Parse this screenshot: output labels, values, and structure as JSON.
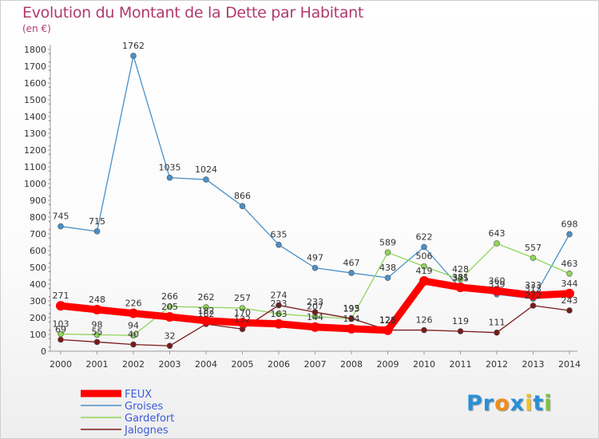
{
  "chart_data": {
    "type": "line",
    "title": "Evolution du Montant de la Dette par Habitant",
    "subtitle": "(en €)",
    "xlabel": "",
    "ylabel": "",
    "x": [
      "2000",
      "2001",
      "2002",
      "2003",
      "2004",
      "2005",
      "2006",
      "2007",
      "2008",
      "2009",
      "2010",
      "2011",
      "2012",
      "2013",
      "2014"
    ],
    "ylim": [
      0,
      1800
    ],
    "yticks": [
      0,
      100,
      200,
      300,
      400,
      500,
      600,
      700,
      800,
      900,
      1000,
      1100,
      1200,
      1300,
      1400,
      1500,
      1600,
      1700,
      1800
    ],
    "grid": false,
    "legend_position": "bottom-left",
    "series": [
      {
        "name": "FEUX",
        "color": "#ff0000",
        "values": [
          271,
          248,
          226,
          205,
          182,
          170,
          163,
          144,
          134,
          125,
          419,
          381,
          360,
          333,
          344
        ]
      },
      {
        "name": "Groises",
        "color": "#4a90c8",
        "values": [
          745,
          715,
          1762,
          1035,
          1024,
          866,
          635,
          497,
          467,
          438,
          622,
          375,
          339,
          313,
          698
        ]
      },
      {
        "name": "Gardefort",
        "color": "#8fd65a",
        "values": [
          103,
          98,
          94,
          266,
          262,
          257,
          223,
          207,
          193,
          589,
          506,
          428,
          643,
          557,
          463
        ]
      },
      {
        "name": "Jalognes",
        "color": "#7a1a1a",
        "values": [
          69,
          55,
          40,
          32,
          162,
          132,
          274,
          233,
          195,
          126,
          126,
          119,
          111,
          272,
          243
        ]
      }
    ]
  },
  "logo": {
    "letters": [
      "P",
      "r",
      "o",
      "x",
      "i",
      "t",
      "i"
    ],
    "colors": [
      "#2a8fd8",
      "#2a8fd8",
      "#f28c1c",
      "#2a8fd8",
      "#f2c31c",
      "#2a8fd8",
      "#7cc242"
    ]
  }
}
